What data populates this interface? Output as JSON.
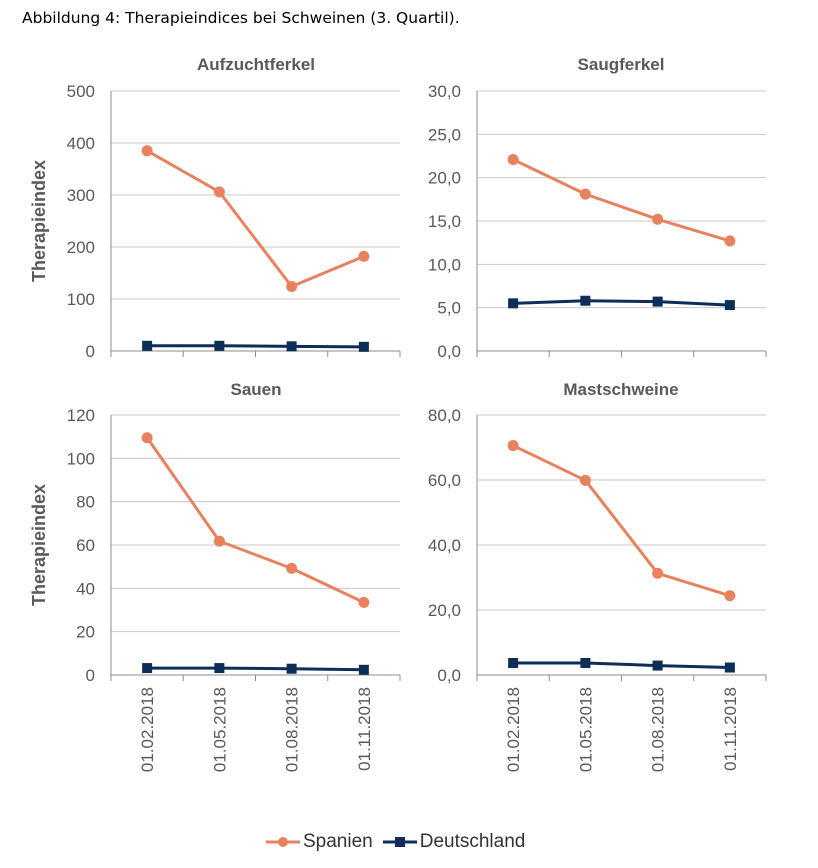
{
  "figure_title": "Abbildung 4: Therapieindices bei Schweinen (3. Quartil).",
  "colors": {
    "spanien": "#E8825E",
    "deutschland": "#0D2E56",
    "grid": "#C8C8C8",
    "axis": "#8C8C8C"
  },
  "legend": [
    {
      "name": "Spanien",
      "color": "#E8825E",
      "marker": "circle"
    },
    {
      "name": "Deutschland",
      "color": "#0D2E56",
      "marker": "square"
    }
  ],
  "chart_data": [
    {
      "type": "line",
      "title": "Aufzuchtferkel",
      "ylabel": "Therapieindex",
      "categories": [
        "01.02.2018",
        "01.05.2018",
        "01.08.2018",
        "01.11.2018"
      ],
      "ylim": [
        0,
        500
      ],
      "yticks": [
        0,
        100,
        200,
        300,
        400,
        500
      ],
      "ytick_labels": [
        "0",
        "100",
        "200",
        "300",
        "400",
        "500"
      ],
      "series": [
        {
          "name": "Spanien",
          "values": [
            385,
            306,
            124,
            182
          ]
        },
        {
          "name": "Deutschland",
          "values": [
            10,
            10,
            9,
            8
          ]
        }
      ],
      "show_xticks": false
    },
    {
      "type": "line",
      "title": "Saugferkel",
      "ylabel": "",
      "categories": [
        "01.02.2018",
        "01.05.2018",
        "01.08.2018",
        "01.11.2018"
      ],
      "ylim": [
        0,
        30
      ],
      "yticks": [
        0,
        5,
        10,
        15,
        20,
        25,
        30
      ],
      "ytick_labels": [
        "0,0",
        "5,0",
        "10,0",
        "15,0",
        "20,0",
        "25,0",
        "30,0"
      ],
      "series": [
        {
          "name": "Spanien",
          "values": [
            22.1,
            18.1,
            15.2,
            12.7
          ]
        },
        {
          "name": "Deutschland",
          "values": [
            5.5,
            5.8,
            5.7,
            5.3
          ]
        }
      ],
      "show_xticks": false
    },
    {
      "type": "line",
      "title": "Sauen",
      "ylabel": "Therapieindex",
      "categories": [
        "01.02.2018",
        "01.05.2018",
        "01.08.2018",
        "01.11.2018"
      ],
      "ylim": [
        0,
        120
      ],
      "yticks": [
        0,
        20,
        40,
        60,
        80,
        100,
        120
      ],
      "ytick_labels": [
        "0",
        "20",
        "40",
        "60",
        "80",
        "100",
        "120"
      ],
      "series": [
        {
          "name": "Spanien",
          "values": [
            109.5,
            61.8,
            49.2,
            33.5
          ]
        },
        {
          "name": "Deutschland",
          "values": [
            3.2,
            3.2,
            2.9,
            2.4
          ]
        }
      ],
      "show_xticks": true
    },
    {
      "type": "line",
      "title": "Mastschweine",
      "ylabel": "",
      "categories": [
        "01.02.2018",
        "01.05.2018",
        "01.08.2018",
        "01.11.2018"
      ],
      "ylim": [
        0,
        80
      ],
      "yticks": [
        0,
        20,
        40,
        60,
        80
      ],
      "ytick_labels": [
        "0,0",
        "20,0",
        "40,0",
        "60,0",
        "80,0"
      ],
      "series": [
        {
          "name": "Spanien",
          "values": [
            70.6,
            59.9,
            31.3,
            24.4
          ]
        },
        {
          "name": "Deutschland",
          "values": [
            3.7,
            3.7,
            2.9,
            2.3
          ]
        }
      ],
      "show_xticks": true
    }
  ]
}
